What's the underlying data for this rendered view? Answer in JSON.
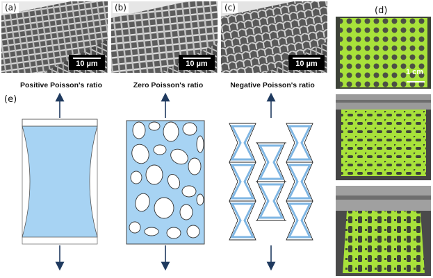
{
  "panels": {
    "a": {
      "label": "(a)",
      "scale_bar": "10 µm"
    },
    "b": {
      "label": "(b)",
      "scale_bar": "10 µm"
    },
    "c": {
      "label": "(c)",
      "scale_bar": "10 µm"
    },
    "d": {
      "label": "(d)",
      "scale_bar": "1 cm"
    },
    "e": {
      "label": "(e)"
    }
  },
  "captions": {
    "positive": "Positive Poisson's ratio",
    "zero": "Zero Poisson's ratio",
    "negative": "Negative Poisson's ratio"
  },
  "colors": {
    "fill_blue": "#a7d3f3",
    "line_blue": "#7fb6e3",
    "arrow": "#1f3a5f",
    "lattice_green": "#a8e23a",
    "clamp_metal": "#8d8d8d"
  }
}
